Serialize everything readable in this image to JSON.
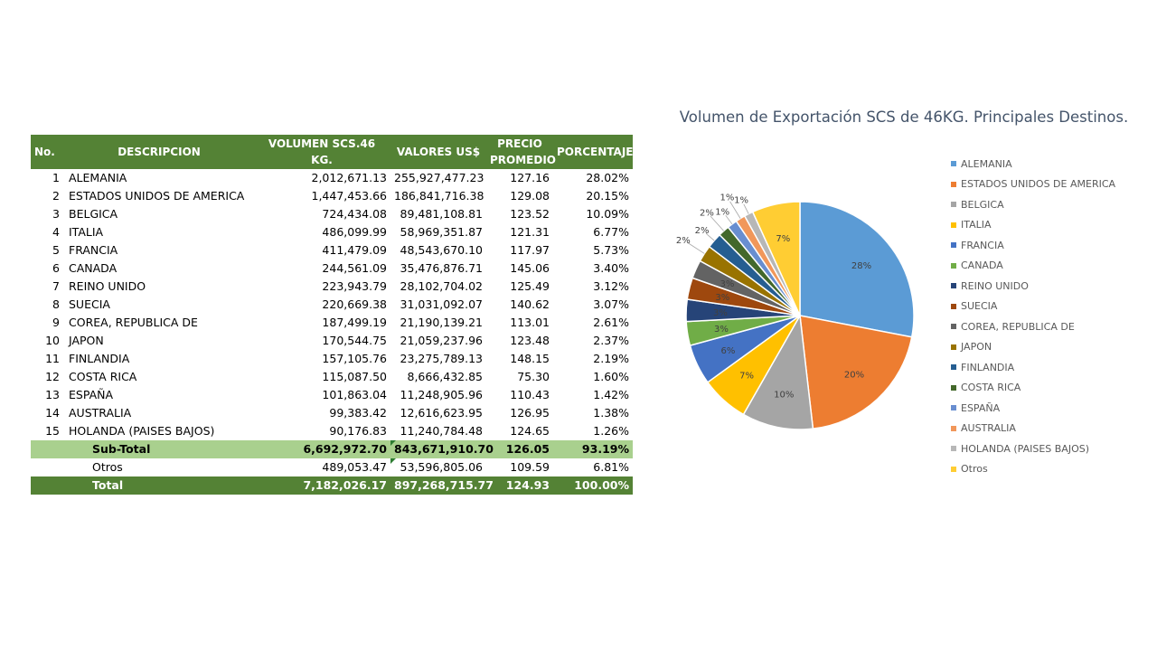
{
  "table": {
    "headers": {
      "no": "No.",
      "desc": "DESCRIPCION",
      "vol": "VOLUMEN SCS.46 KG.",
      "val": "VALORES US$",
      "pre1": "PRECIO",
      "pre2": "PROMEDIO",
      "pct": "PORCENTAJE"
    },
    "rows": [
      {
        "no": "1",
        "desc": "ALEMANIA",
        "vol": "2,012,671.13",
        "val": "255,927,477.23",
        "pre": "127.16",
        "pct": "28.02%"
      },
      {
        "no": "2",
        "desc": "ESTADOS UNIDOS DE AMERICA",
        "vol": "1,447,453.66",
        "val": "186,841,716.38",
        "pre": "129.08",
        "pct": "20.15%"
      },
      {
        "no": "3",
        "desc": "BELGICA",
        "vol": "724,434.08",
        "val": "89,481,108.81",
        "pre": "123.52",
        "pct": "10.09%"
      },
      {
        "no": "4",
        "desc": "ITALIA",
        "vol": "486,099.99",
        "val": "58,969,351.87",
        "pre": "121.31",
        "pct": "6.77%"
      },
      {
        "no": "5",
        "desc": "FRANCIA",
        "vol": "411,479.09",
        "val": "48,543,670.10",
        "pre": "117.97",
        "pct": "5.73%"
      },
      {
        "no": "6",
        "desc": "CANADA",
        "vol": "244,561.09",
        "val": "35,476,876.71",
        "pre": "145.06",
        "pct": "3.40%"
      },
      {
        "no": "7",
        "desc": "REINO UNIDO",
        "vol": "223,943.79",
        "val": "28,102,704.02",
        "pre": "125.49",
        "pct": "3.12%"
      },
      {
        "no": "8",
        "desc": "SUECIA",
        "vol": "220,669.38",
        "val": "31,031,092.07",
        "pre": "140.62",
        "pct": "3.07%"
      },
      {
        "no": "9",
        "desc": "COREA, REPUBLICA DE",
        "vol": "187,499.19",
        "val": "21,190,139.21",
        "pre": "113.01",
        "pct": "2.61%"
      },
      {
        "no": "10",
        "desc": "JAPON",
        "vol": "170,544.75",
        "val": "21,059,237.96",
        "pre": "123.48",
        "pct": "2.37%"
      },
      {
        "no": "11",
        "desc": "FINLANDIA",
        "vol": "157,105.76",
        "val": "23,275,789.13",
        "pre": "148.15",
        "pct": "2.19%"
      },
      {
        "no": "12",
        "desc": "COSTA RICA",
        "vol": "115,087.50",
        "val": "8,666,432.85",
        "pre": "75.30",
        "pct": "1.60%"
      },
      {
        "no": "13",
        "desc": "ESPAÑA",
        "vol": "101,863.04",
        "val": "11,248,905.96",
        "pre": "110.43",
        "pct": "1.42%"
      },
      {
        "no": "14",
        "desc": "AUSTRALIA",
        "vol": "99,383.42",
        "val": "12,616,623.95",
        "pre": "126.95",
        "pct": "1.38%"
      },
      {
        "no": "15",
        "desc": "HOLANDA (PAISES BAJOS)",
        "vol": "90,176.83",
        "val": "11,240,784.48",
        "pre": "124.65",
        "pct": "1.26%"
      }
    ],
    "subtotal": {
      "desc": "Sub-Total",
      "vol": "6,692,972.70",
      "val": "843,671,910.70",
      "pre": "126.05",
      "pct": "93.19%"
    },
    "otros": {
      "desc": "Otros",
      "vol": "489,053.47",
      "val": "53,596,805.06",
      "pre": "109.59",
      "pct": "6.81%"
    },
    "total": {
      "desc": "Total",
      "vol": "7,182,026.17",
      "val": "897,268,715.77",
      "pre": "124.93",
      "pct": "100.00%"
    }
  },
  "chart_data": {
    "type": "pie",
    "title": "Volumen de Exportación SCS de 46KG. Principales Destinos.",
    "legend_position": "right",
    "categories": [
      "ALEMANIA",
      "ESTADOS UNIDOS DE AMERICA",
      "BELGICA",
      "ITALIA",
      "FRANCIA",
      "CANADA",
      "REINO UNIDO",
      "SUECIA",
      "COREA, REPUBLICA DE",
      "JAPON",
      "FINLANDIA",
      "COSTA RICA",
      "ESPAÑA",
      "AUSTRALIA",
      "HOLANDA (PAISES BAJOS)",
      "Otros"
    ],
    "values": [
      28.02,
      20.15,
      10.09,
      6.77,
      5.73,
      3.4,
      3.12,
      3.07,
      2.61,
      2.37,
      2.19,
      1.6,
      1.42,
      1.38,
      1.26,
      6.81
    ],
    "data_labels": [
      "28%",
      "20%",
      "10%",
      "7%",
      "6%",
      "3%",
      "3%",
      "3%",
      "3%",
      "2%",
      "2%",
      "2%",
      "1%",
      "1%",
      "1%",
      "7%"
    ],
    "colors": [
      "#5b9bd5",
      "#ed7d31",
      "#a5a5a5",
      "#ffc000",
      "#4472c4",
      "#70ad47",
      "#264478",
      "#9e480e",
      "#636363",
      "#997300",
      "#255e91",
      "#43682b",
      "#698ed0",
      "#f1975a",
      "#b7b7b7",
      "#ffcd33"
    ]
  }
}
